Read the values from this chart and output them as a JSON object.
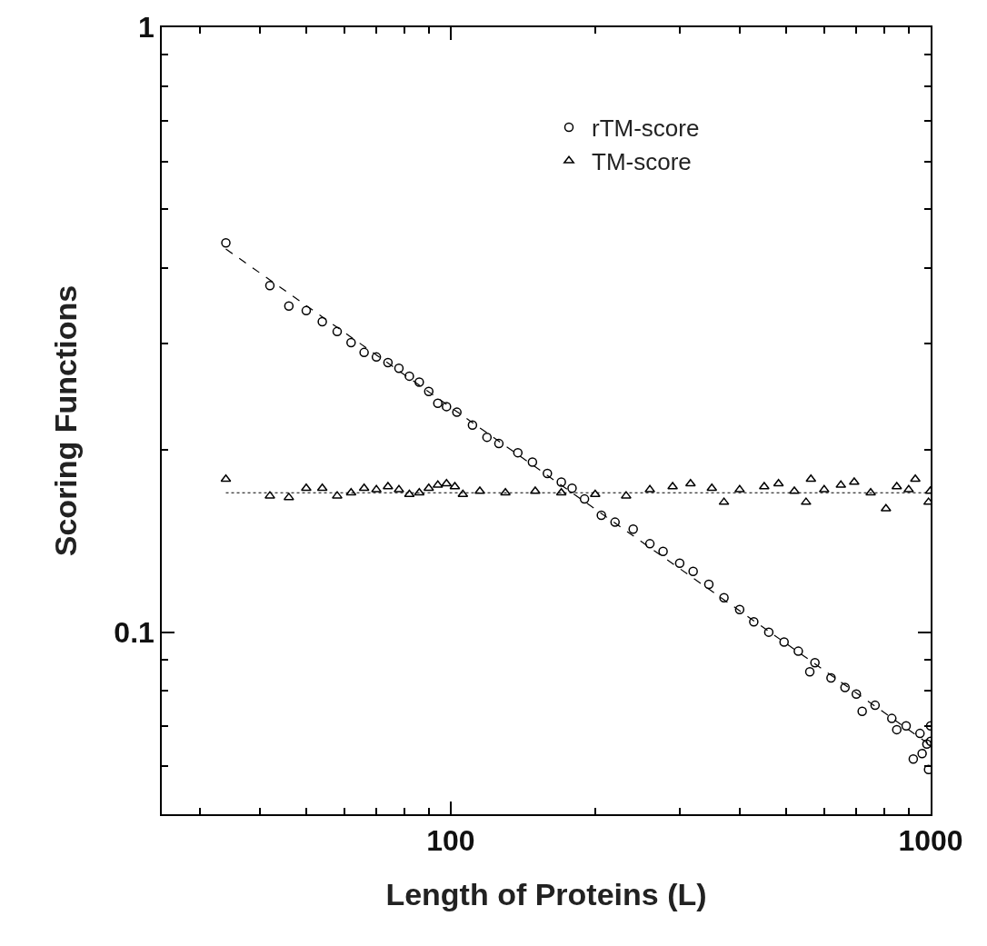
{
  "chart_data": {
    "type": "scatter",
    "xlabel": "Length of Proteins (L)",
    "ylabel": "Scoring Functions",
    "log": "xy",
    "legend": "top right",
    "xlim": [
      25,
      1000
    ],
    "ylim": [
      0.05,
      1
    ],
    "xticks": [
      {
        "value": 30,
        "label": null
      },
      {
        "value": 40,
        "label": null
      },
      {
        "value": 50,
        "label": null
      },
      {
        "value": 60,
        "label": null
      },
      {
        "value": 70,
        "label": null
      },
      {
        "value": 80,
        "label": null
      },
      {
        "value": 90,
        "label": null
      },
      100,
      {
        "value": 200,
        "label": null
      },
      {
        "value": 300,
        "label": null
      },
      {
        "value": 400,
        "label": null
      },
      {
        "value": 500,
        "label": null
      },
      {
        "value": 600,
        "label": null
      },
      {
        "value": 700,
        "label": null
      },
      {
        "value": 800,
        "label": null
      },
      {
        "value": 900,
        "label": null
      },
      1000
    ],
    "yticks": [
      {
        "value": 0.06,
        "label": null
      },
      {
        "value": 0.07,
        "label": null
      },
      {
        "value": 0.08,
        "label": null
      },
      {
        "value": 0.09,
        "label": null
      },
      0.1,
      {
        "value": 0.2,
        "label": null
      },
      {
        "value": 0.3,
        "label": null
      },
      {
        "value": 0.4,
        "label": null
      },
      {
        "value": 0.5,
        "label": null
      },
      {
        "value": 0.6,
        "label": null
      },
      {
        "value": 0.7,
        "label": null
      },
      {
        "value": 0.8,
        "label": null
      },
      {
        "value": 0.9,
        "label": null
      },
      1
    ],
    "series": [
      {
        "name": "rTM-score",
        "marker": "circle",
        "color": "#000000",
        "x": [
          34,
          42,
          46,
          50,
          54,
          58,
          62,
          66,
          70,
          74,
          78,
          82,
          86,
          90,
          94,
          98,
          103,
          111,
          119,
          126,
          138,
          148,
          159,
          170,
          179,
          190,
          206,
          220,
          240,
          260,
          277,
          300,
          320,
          345,
          371,
          400,
          428,
          460,
          495,
          530,
          574,
          620,
          663,
          700,
          766,
          830,
          889,
          920,
          950,
          982,
          990,
          1000,
          1000,
          560,
          720,
          850,
          960
        ],
        "values": [
          0.44,
          0.374,
          0.346,
          0.34,
          0.326,
          0.314,
          0.301,
          0.29,
          0.285,
          0.279,
          0.273,
          0.265,
          0.259,
          0.25,
          0.239,
          0.236,
          0.231,
          0.22,
          0.21,
          0.205,
          0.198,
          0.191,
          0.183,
          0.177,
          0.173,
          0.166,
          0.156,
          0.152,
          0.148,
          0.14,
          0.136,
          0.13,
          0.126,
          0.12,
          0.114,
          0.109,
          0.104,
          0.1,
          0.0963,
          0.093,
          0.089,
          0.084,
          0.081,
          0.079,
          0.0757,
          0.072,
          0.07,
          0.0617,
          0.068,
          0.0653,
          0.0593,
          0.066,
          0.07,
          0.086,
          0.074,
          0.069,
          0.063
        ]
      },
      {
        "name": "TM-score",
        "marker": "triangle",
        "color": "#000000",
        "x": [
          34,
          42,
          46,
          50,
          54,
          58,
          62,
          66,
          70,
          74,
          78,
          82,
          86,
          90,
          94,
          98,
          102,
          106,
          115,
          130,
          150,
          170,
          200,
          232,
          260,
          290,
          316,
          350,
          371,
          400,
          450,
          482,
          520,
          550,
          563,
          600,
          650,
          693,
          750,
          807,
          850,
          900,
          929,
          990,
          998
        ],
        "values": [
          0.179,
          0.168,
          0.167,
          0.173,
          0.173,
          0.168,
          0.17,
          0.173,
          0.172,
          0.174,
          0.172,
          0.169,
          0.17,
          0.173,
          0.175,
          0.176,
          0.174,
          0.169,
          0.171,
          0.17,
          0.171,
          0.17,
          0.169,
          0.168,
          0.172,
          0.174,
          0.176,
          0.173,
          0.164,
          0.172,
          0.174,
          0.176,
          0.171,
          0.164,
          0.179,
          0.172,
          0.175,
          0.177,
          0.17,
          0.16,
          0.174,
          0.172,
          0.179,
          0.164,
          0.171
        ]
      },
      {
        "type": "line",
        "line_style": "dashed",
        "color": "#000000",
        "x": [
          34,
          1000
        ],
        "values": [
          0.43,
          0.065
        ]
      },
      {
        "type": "line",
        "line_style": "dotted",
        "color": "#000000",
        "x": [
          34,
          1000
        ],
        "values": [
          0.17,
          0.17
        ]
      }
    ]
  }
}
